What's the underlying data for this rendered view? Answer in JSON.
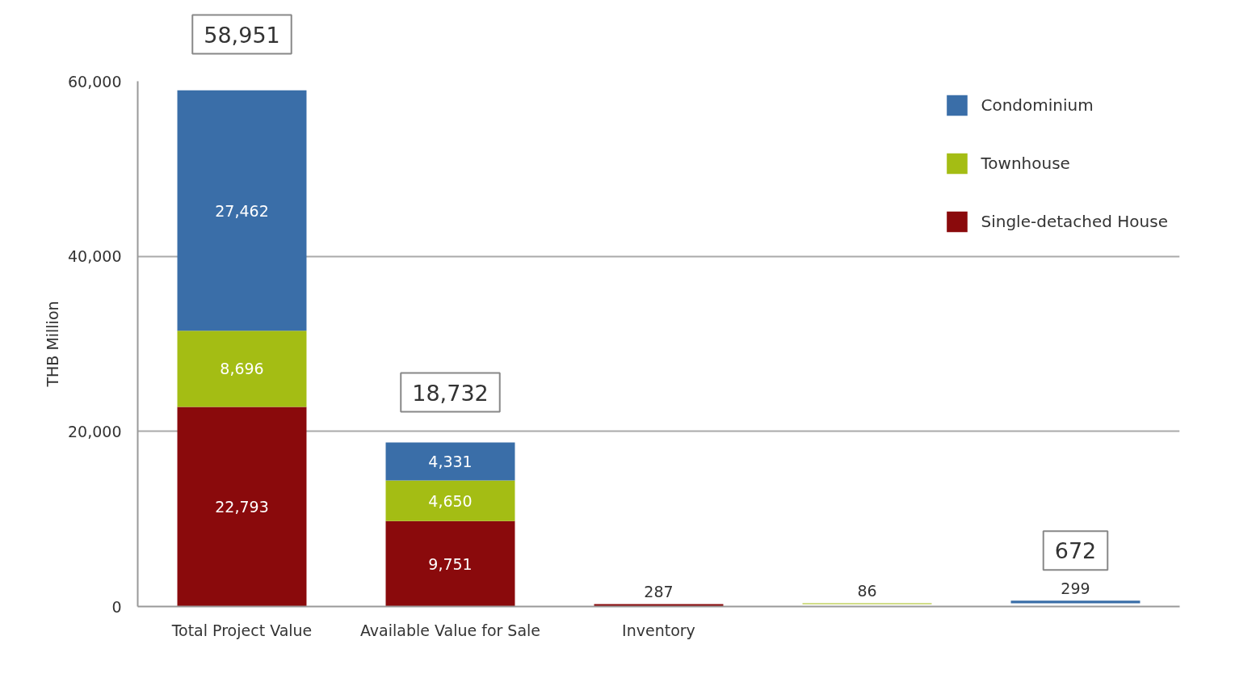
{
  "chart_data": {
    "type": "bar",
    "ylabel": "THB Million",
    "categories": [
      "Total Project Value",
      "Available Value for Sale",
      "Inventory",
      null,
      null
    ],
    "stacked": true,
    "series": [
      {
        "name": "Single-detached House",
        "color": "#8a0a0c",
        "values": [
          22793,
          9751,
          287,
          null,
          null
        ],
        "value_labels": [
          "22,793",
          "9,751",
          "287",
          null,
          null
        ]
      },
      {
        "name": "Townhouse",
        "color": "#a4bd14",
        "values": [
          8696,
          4650,
          null,
          86,
          null
        ],
        "base": [
          null,
          null,
          null,
          287,
          null
        ],
        "value_labels": [
          "8,696",
          "4,650",
          null,
          "86",
          null
        ]
      },
      {
        "name": "Condominium",
        "color": "#3a6ea8",
        "values": [
          27462,
          4331,
          null,
          null,
          299
        ],
        "base": [
          null,
          null,
          null,
          null,
          373
        ],
        "value_labels": [
          "27,462",
          "4,331",
          null,
          null,
          "299"
        ]
      }
    ],
    "totals": [
      "58,951",
      "18,732",
      null,
      null,
      null
    ],
    "annotations": [
      {
        "text": "672",
        "y": 672
      }
    ],
    "ylim": [
      0,
      60000
    ],
    "yticks": [
      0,
      {
        "value": 20000,
        "label": "20,000"
      },
      {
        "value": 40000,
        "label": "40,000"
      },
      {
        "value": 60000,
        "label": "60,000"
      }
    ],
    "grid": "y",
    "legend": "top right"
  }
}
